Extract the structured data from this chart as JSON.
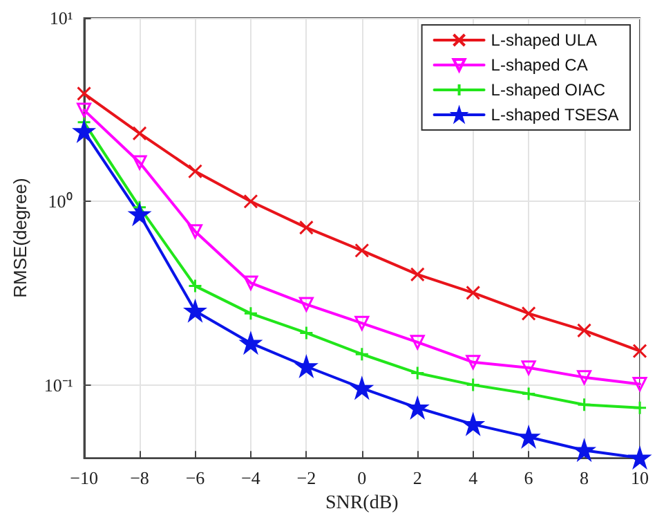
{
  "chart_data": {
    "type": "line",
    "xlabel": "SNR(dB)",
    "ylabel": "RMSE(degree)",
    "x": [
      -10,
      -8,
      -6,
      -4,
      -2,
      0,
      2,
      4,
      6,
      8,
      10
    ],
    "series": [
      {
        "name": "L-shaped ULA",
        "color": "#e8141b",
        "marker": "cross",
        "values": [
          3.87,
          2.35,
          1.46,
          1.0,
          0.72,
          0.54,
          0.4,
          0.318,
          0.245,
          0.198,
          0.153
        ]
      },
      {
        "name": "L-shaped CA",
        "color": "#ff00ff",
        "marker": "triangle",
        "values": [
          3.15,
          1.63,
          0.686,
          0.36,
          0.275,
          0.217,
          0.171,
          0.133,
          0.124,
          0.11,
          0.101
        ]
      },
      {
        "name": "L-shaped OIAC",
        "color": "#22e51b",
        "marker": "cross",
        "values": [
          2.7,
          0.93,
          0.346,
          0.245,
          0.192,
          0.147,
          0.116,
          0.1,
          0.0895,
          0.078,
          0.075
        ]
      },
      {
        "name": "L-shaped TSESA",
        "color": "#0a14e8",
        "marker": "star",
        "values": [
          2.41,
          0.85,
          0.253,
          0.169,
          0.126,
          0.096,
          0.075,
          0.061,
          0.052,
          0.044,
          0.04
        ]
      }
    ],
    "xlim": [
      -10,
      10
    ],
    "xticks": [
      {
        "value": -10,
        "label": "−10"
      },
      {
        "value": -8,
        "label": "−8"
      },
      {
        "value": -6,
        "label": "−6"
      },
      {
        "value": -4,
        "label": "−4"
      },
      {
        "value": -2,
        "label": "−2"
      },
      0,
      2,
      4,
      6,
      8,
      10
    ],
    "ylim": [
      0.04,
      10
    ],
    "yticks": [
      {
        "value": 0.1,
        "label": "10⁻¹"
      },
      {
        "value": 1,
        "label": "10⁰"
      },
      {
        "value": 10,
        "label": "10¹"
      }
    ],
    "log": "y",
    "grid": true,
    "legend": "top right",
    "line_style": "solid"
  }
}
